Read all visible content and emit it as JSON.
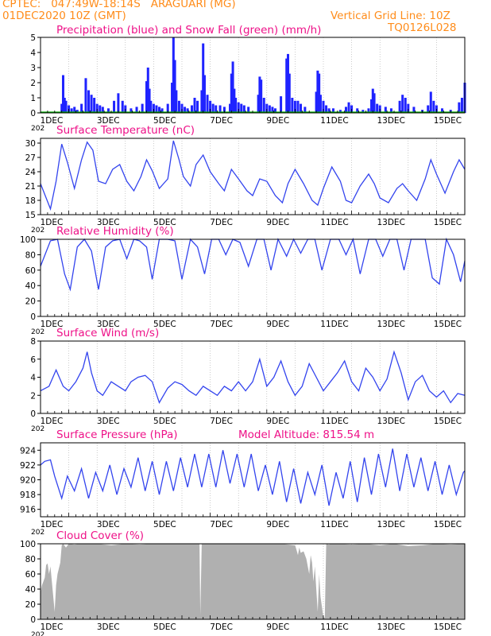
{
  "header": {
    "line1": "CPTEC:   047:49W-18:14S   ARAGUARI (MG)",
    "line2": "01DEC2020 10Z (GMT)",
    "grid_note": "Vertical Grid Line: 10Z",
    "model_code": "TQ0126L028"
  },
  "colors": {
    "precip": "#1f23ff",
    "snow": "#00aa00",
    "line": "#3344ee",
    "title": "#ee1188",
    "header": "#ff8c1a",
    "cloud": "#b0b0b0"
  },
  "x_axis": {
    "unit": "day of December 2020",
    "range": [
      1,
      16
    ],
    "ticks": [
      1,
      3,
      5,
      7,
      9,
      11,
      13,
      15
    ],
    "tick_labels": [
      "1DEC",
      "3DEC",
      "5DEC",
      "7DEC",
      "9DEC",
      "11DEC",
      "13DEC",
      "15DEC"
    ],
    "year_fragment": "202"
  },
  "panels": {
    "precip": {
      "title": "Precipitation (blue) and Snow Fall (green) (mm/h)"
    },
    "temp": {
      "title": "Surface Temperature (nC)"
    },
    "rh": {
      "title": "Relative Humidity (%)"
    },
    "wind": {
      "title": "Surface Wind (m/s)"
    },
    "pressure": {
      "title": "Surface Pressure (hPa)",
      "altitude_label": "Model Altitude: 815.54 m"
    },
    "cloud": {
      "title": "Cloud Cover (%)"
    }
  },
  "chart_data": [
    {
      "type": "bar",
      "id": "precip",
      "ylim": [
        0,
        5
      ],
      "yticks": [
        0,
        1,
        2,
        3,
        4,
        5
      ],
      "series": [
        {
          "name": "Precipitation",
          "x": [
            1.75,
            1.8,
            1.85,
            1.9,
            2.0,
            2.1,
            2.2,
            2.3,
            2.45,
            2.6,
            2.7,
            2.8,
            2.9,
            3.0,
            3.1,
            3.2,
            3.4,
            3.6,
            3.75,
            3.9,
            4.0,
            4.2,
            4.4,
            4.6,
            4.75,
            4.8,
            4.85,
            4.9,
            5.0,
            5.1,
            5.2,
            5.3,
            5.5,
            5.65,
            5.7,
            5.75,
            5.8,
            5.9,
            6.0,
            6.1,
            6.2,
            6.35,
            6.45,
            6.55,
            6.7,
            6.75,
            6.8,
            6.9,
            7.0,
            7.1,
            7.2,
            7.35,
            7.5,
            7.7,
            7.75,
            7.8,
            7.85,
            7.9,
            8.0,
            8.1,
            8.2,
            8.35,
            8.7,
            8.75,
            8.8,
            8.9,
            9.0,
            9.1,
            9.2,
            9.3,
            9.5,
            9.7,
            9.75,
            9.8,
            9.9,
            10.0,
            10.1,
            10.2,
            10.35,
            10.75,
            10.8,
            10.85,
            10.9,
            11.0,
            11.1,
            11.2,
            11.35,
            11.6,
            11.8,
            11.9,
            12.0,
            12.2,
            12.4,
            12.6,
            12.7,
            12.75,
            12.8,
            12.9,
            13.0,
            13.2,
            13.4,
            13.7,
            13.8,
            13.9,
            14.0,
            14.2,
            14.5,
            14.7,
            14.8,
            14.9,
            15.0,
            15.2,
            15.5,
            15.8,
            15.9,
            16.0
          ],
          "values": [
            0.6,
            2.5,
            1.0,
            0.8,
            0.5,
            0.3,
            0.4,
            0.2,
            0.6,
            2.3,
            1.5,
            1.2,
            1.0,
            0.6,
            0.5,
            0.4,
            0.3,
            0.8,
            1.3,
            0.8,
            0.5,
            0.3,
            0.4,
            0.6,
            2.1,
            3.0,
            1.6,
            0.8,
            0.6,
            0.5,
            0.4,
            0.3,
            0.6,
            2.0,
            5.0,
            3.5,
            1.5,
            0.8,
            0.6,
            0.4,
            0.3,
            0.5,
            1.0,
            0.8,
            1.5,
            4.6,
            2.5,
            1.2,
            0.8,
            0.6,
            0.5,
            0.5,
            0.4,
            0.6,
            2.6,
            3.4,
            1.6,
            1.0,
            0.7,
            0.6,
            0.5,
            0.4,
            1.2,
            2.4,
            2.2,
            1.0,
            0.6,
            0.5,
            0.4,
            0.3,
            1.1,
            3.6,
            3.9,
            2.6,
            1.0,
            0.8,
            0.8,
            0.6,
            0.4,
            1.4,
            2.8,
            2.6,
            1.2,
            0.8,
            0.5,
            0.3,
            0.3,
            0.2,
            0.4,
            0.7,
            0.5,
            0.3,
            0.2,
            0.3,
            0.9,
            1.6,
            1.3,
            0.6,
            0.5,
            0.4,
            0.3,
            0.8,
            1.2,
            1.0,
            0.6,
            0.4,
            0.2,
            0.5,
            1.4,
            0.8,
            0.5,
            0.3,
            0.2,
            0.7,
            1.0,
            2.0
          ]
        },
        {
          "name": "Snow Fall",
          "x": [
            1.0,
            16.0
          ],
          "values": [
            0,
            0
          ]
        }
      ]
    },
    {
      "type": "line",
      "id": "temp",
      "ylim": [
        15,
        31
      ],
      "yticks": [
        15,
        18,
        21,
        24,
        27,
        30
      ],
      "series": [
        {
          "name": "Surface Temperature",
          "x": [
            1.0,
            1.35,
            1.55,
            1.75,
            1.95,
            2.2,
            2.45,
            2.65,
            2.85,
            3.05,
            3.3,
            3.55,
            3.8,
            4.05,
            4.3,
            4.55,
            4.75,
            4.95,
            5.2,
            5.5,
            5.7,
            5.9,
            6.05,
            6.3,
            6.5,
            6.75,
            7.0,
            7.3,
            7.5,
            7.75,
            8.0,
            8.3,
            8.5,
            8.75,
            9.0,
            9.3,
            9.55,
            9.75,
            10.0,
            10.3,
            10.6,
            10.8,
            11.0,
            11.3,
            11.6,
            11.8,
            12.0,
            12.3,
            12.6,
            12.8,
            13.0,
            13.3,
            13.6,
            13.8,
            14.0,
            14.3,
            14.6,
            14.8,
            15.0,
            15.3,
            15.6,
            15.8,
            16.0
          ],
          "values": [
            21.5,
            16.2,
            22.0,
            29.8,
            26.0,
            20.5,
            26.5,
            30.2,
            28.5,
            22.0,
            21.5,
            24.5,
            25.5,
            22.0,
            20.0,
            23.0,
            26.5,
            24.2,
            20.5,
            22.5,
            30.5,
            26.5,
            23.0,
            21.0,
            25.5,
            27.5,
            24.0,
            21.5,
            20.0,
            24.5,
            22.5,
            20.0,
            19.0,
            22.5,
            22.0,
            19.0,
            17.5,
            21.5,
            24.5,
            21.5,
            18.0,
            17.0,
            20.5,
            25.0,
            22.0,
            18.0,
            17.5,
            21.0,
            23.5,
            21.5,
            18.5,
            17.5,
            20.5,
            21.5,
            20.0,
            18.0,
            22.5,
            26.5,
            23.5,
            19.5,
            24.0,
            26.5,
            24.5
          ]
        }
      ]
    },
    {
      "type": "line",
      "id": "rh",
      "ylim": [
        0,
        100
      ],
      "yticks": [
        0,
        20,
        40,
        60,
        80,
        100
      ],
      "series": [
        {
          "name": "Relative Humidity",
          "x": [
            1.0,
            1.35,
            1.6,
            1.85,
            2.05,
            2.3,
            2.55,
            2.8,
            3.05,
            3.3,
            3.55,
            3.8,
            4.05,
            4.3,
            4.5,
            4.75,
            4.95,
            5.2,
            5.5,
            5.75,
            6.0,
            6.3,
            6.55,
            6.8,
            7.05,
            7.3,
            7.55,
            7.8,
            8.05,
            8.35,
            8.65,
            8.9,
            9.15,
            9.4,
            9.7,
            9.95,
            10.2,
            10.45,
            10.7,
            10.95,
            11.25,
            11.55,
            11.8,
            12.05,
            12.3,
            12.6,
            12.85,
            13.1,
            13.35,
            13.6,
            13.85,
            14.1,
            14.35,
            14.6,
            14.85,
            15.1,
            15.35,
            15.6,
            15.85,
            16.0
          ],
          "values": [
            65,
            98,
            100,
            55,
            35,
            90,
            100,
            85,
            35,
            90,
            98,
            100,
            75,
            100,
            98,
            90,
            48,
            100,
            100,
            98,
            48,
            100,
            90,
            55,
            100,
            100,
            80,
            100,
            96,
            65,
            100,
            100,
            60,
            100,
            78,
            100,
            82,
            100,
            100,
            60,
            100,
            100,
            80,
            100,
            55,
            100,
            100,
            78,
            100,
            100,
            60,
            100,
            100,
            100,
            50,
            42,
            100,
            80,
            45,
            72
          ]
        }
      ]
    },
    {
      "type": "line",
      "id": "wind",
      "ylim": [
        0,
        8
      ],
      "yticks": [
        0,
        2,
        4,
        6,
        8
      ],
      "series": [
        {
          "name": "Wind Speed",
          "x": [
            1.0,
            1.3,
            1.55,
            1.8,
            2.0,
            2.25,
            2.5,
            2.65,
            2.8,
            3.0,
            3.2,
            3.5,
            3.75,
            4.0,
            4.2,
            4.45,
            4.7,
            4.95,
            5.2,
            5.5,
            5.75,
            6.0,
            6.25,
            6.5,
            6.75,
            7.0,
            7.25,
            7.5,
            7.75,
            8.0,
            8.25,
            8.5,
            8.75,
            9.0,
            9.25,
            9.5,
            9.75,
            10.0,
            10.25,
            10.5,
            10.75,
            11.0,
            11.25,
            11.5,
            11.75,
            12.0,
            12.25,
            12.5,
            12.75,
            13.0,
            13.25,
            13.5,
            13.75,
            14.0,
            14.25,
            14.5,
            14.75,
            15.0,
            15.25,
            15.5,
            15.75,
            16.0
          ],
          "values": [
            2.5,
            3.0,
            4.8,
            3.0,
            2.5,
            3.5,
            5.0,
            6.8,
            4.5,
            2.5,
            2.0,
            3.5,
            3.0,
            2.5,
            3.5,
            4.0,
            4.2,
            3.5,
            1.2,
            2.8,
            3.5,
            3.2,
            2.5,
            2.0,
            3.0,
            2.5,
            2.0,
            3.0,
            2.5,
            3.5,
            2.5,
            3.5,
            6.0,
            3.0,
            4.0,
            5.8,
            3.5,
            2.0,
            3.0,
            5.5,
            4.0,
            2.5,
            3.5,
            4.5,
            5.8,
            3.5,
            2.5,
            5.0,
            4.0,
            2.5,
            3.8,
            6.8,
            4.5,
            1.5,
            3.5,
            4.2,
            2.5,
            1.8,
            2.5,
            1.2,
            2.2,
            2.0
          ]
        }
      ]
    },
    {
      "type": "line",
      "id": "pressure",
      "ylim": [
        915,
        925
      ],
      "yticks": [
        916,
        918,
        920,
        922,
        924
      ],
      "series": [
        {
          "name": "Surface Pressure",
          "x": [
            1.0,
            1.15,
            1.35,
            1.5,
            1.75,
            1.95,
            2.2,
            2.45,
            2.7,
            2.95,
            3.2,
            3.45,
            3.7,
            3.95,
            4.2,
            4.45,
            4.7,
            4.95,
            5.2,
            5.45,
            5.7,
            5.95,
            6.2,
            6.45,
            6.7,
            6.95,
            7.2,
            7.45,
            7.7,
            7.95,
            8.2,
            8.45,
            8.7,
            8.95,
            9.2,
            9.45,
            9.7,
            9.95,
            10.2,
            10.45,
            10.7,
            10.95,
            11.2,
            11.45,
            11.7,
            11.95,
            12.2,
            12.45,
            12.7,
            12.95,
            13.2,
            13.45,
            13.7,
            13.95,
            14.2,
            14.45,
            14.7,
            14.95,
            15.2,
            15.45,
            15.7,
            15.95,
            16.0
          ],
          "values": [
            922.0,
            922.5,
            922.7,
            920.5,
            917.5,
            920.5,
            918.5,
            921.5,
            917.5,
            921.0,
            918.5,
            922.0,
            918.0,
            921.5,
            919.0,
            923.0,
            918.5,
            922.5,
            918.0,
            922.5,
            918.5,
            923.0,
            919.0,
            923.5,
            919.0,
            923.5,
            919.0,
            924.0,
            919.5,
            923.5,
            919.0,
            923.5,
            918.5,
            922.0,
            918.0,
            922.5,
            917.0,
            921.5,
            916.8,
            921.0,
            918.0,
            922.0,
            916.5,
            921.0,
            917.5,
            922.5,
            917.0,
            923.0,
            918.0,
            923.5,
            919.0,
            924.2,
            918.5,
            923.5,
            919.0,
            923.0,
            918.5,
            922.5,
            918.0,
            922.0,
            918.0,
            921.0,
            921.2
          ]
        }
      ]
    },
    {
      "type": "area",
      "id": "cloud",
      "ylim": [
        0,
        100
      ],
      "yticks": [
        0,
        20,
        40,
        60,
        80,
        100
      ],
      "series": [
        {
          "name": "Cloud Cover",
          "x": [
            1.0,
            1.05,
            1.15,
            1.2,
            1.25,
            1.3,
            1.35,
            1.5,
            1.55,
            1.6,
            1.7,
            1.75,
            1.8,
            1.9,
            2.0,
            2.2,
            2.4,
            3.0,
            3.5,
            4.0,
            4.5,
            5.0,
            5.5,
            6.0,
            6.5,
            6.62,
            6.65,
            6.7,
            7.0,
            7.5,
            8.0,
            8.5,
            9.0,
            9.5,
            10.0,
            10.05,
            10.1,
            10.15,
            10.2,
            10.3,
            10.4,
            10.5,
            10.55,
            10.6,
            10.65,
            10.7,
            10.75,
            10.8,
            10.85,
            10.9,
            11.0,
            11.05,
            11.1,
            11.2,
            11.25,
            11.3,
            11.5,
            12.0,
            12.5,
            13.0,
            13.5,
            14.0,
            14.5,
            15.0,
            15.5,
            16.0
          ],
          "values": [
            35,
            45,
            55,
            72,
            74,
            60,
            70,
            10,
            45,
            60,
            75,
            98,
            100,
            95,
            100,
            99,
            100,
            100,
            98,
            100,
            99,
            100,
            100,
            100,
            100,
            100,
            5,
            100,
            100,
            100,
            100,
            100,
            100,
            100,
            98,
            92,
            85,
            95,
            88,
            90,
            80,
            60,
            85,
            75,
            50,
            70,
            40,
            10,
            60,
            30,
            3,
            2,
            100,
            99,
            100,
            100,
            100,
            99,
            100,
            98,
            100,
            97,
            98,
            100,
            99,
            100
          ]
        }
      ]
    }
  ]
}
